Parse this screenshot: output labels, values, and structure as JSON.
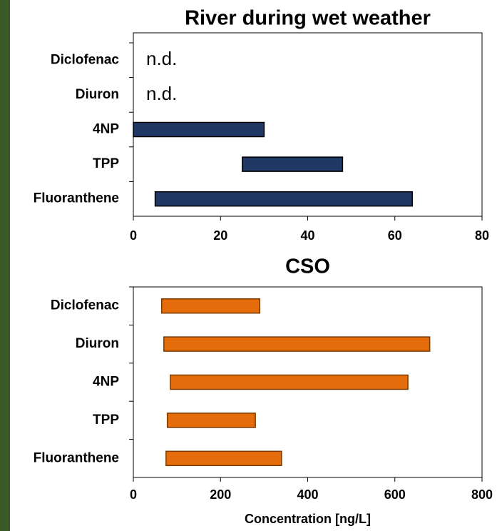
{
  "chart_data": [
    {
      "type": "range-bar",
      "title": "River during wet weather",
      "categories": [
        "Diclofenac",
        "Diuron",
        "4NP",
        "TPP",
        "Fluoranthene"
      ],
      "low": [
        null,
        null,
        0,
        25,
        5
      ],
      "high": [
        null,
        null,
        30,
        48,
        64
      ],
      "value_labels": [
        "n.d.",
        "n.d.",
        null,
        null,
        null
      ],
      "color": "#1f3864",
      "xlim": [
        0,
        80
      ],
      "xticks": [
        0,
        20,
        40,
        60,
        80
      ]
    },
    {
      "type": "range-bar",
      "title": "CSO",
      "xlabel": "Concentration [ng/L]",
      "categories": [
        "Diclofenac",
        "Diuron",
        "4NP",
        "TPP",
        "Fluoranthene"
      ],
      "low": [
        65,
        70,
        85,
        78,
        75
      ],
      "high": [
        290,
        680,
        630,
        280,
        340
      ],
      "color": "#e46c0a",
      "xlim": [
        0,
        800
      ],
      "xticks": [
        0,
        200,
        400,
        600,
        800
      ]
    }
  ]
}
